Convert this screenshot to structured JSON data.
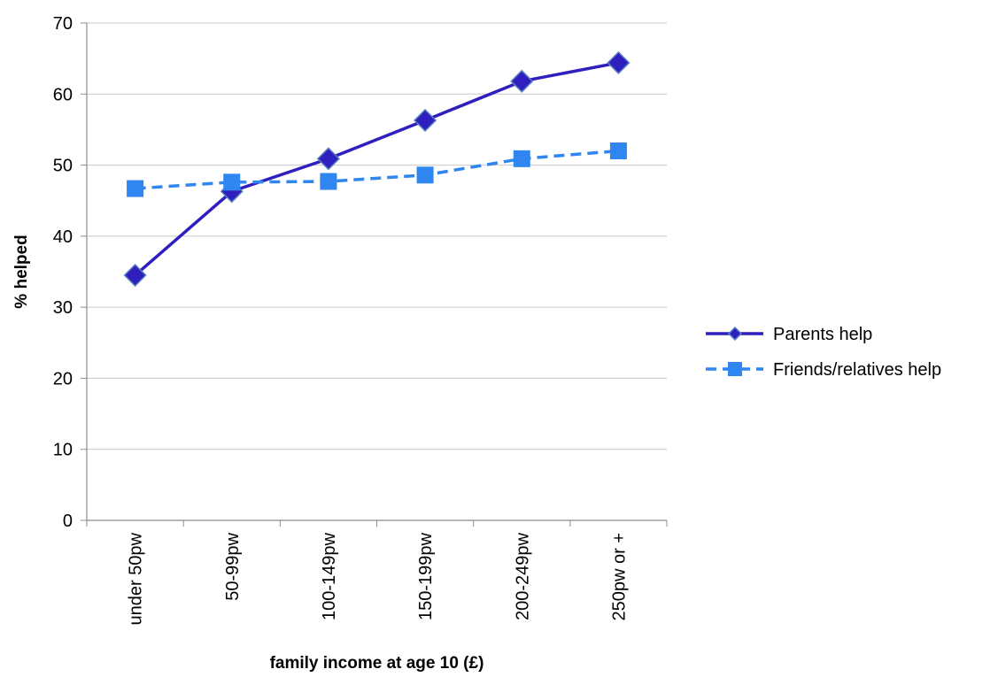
{
  "chart_data": {
    "type": "line",
    "title": "",
    "xlabel": "family income at age 10 (£)",
    "ylabel": "% helped",
    "ylim": [
      0,
      70
    ],
    "yticks": [
      0,
      10,
      20,
      30,
      40,
      50,
      60,
      70
    ],
    "grid": true,
    "legend_position": "right",
    "categories": [
      "under 50pw",
      "50-99pw",
      "100-149pw",
      "150-199pw",
      "200-249pw",
      "250pw or +"
    ],
    "series": [
      {
        "name": "Parents help",
        "values": [
          34.5,
          46.3,
          50.9,
          56.3,
          61.8,
          64.4
        ],
        "color": "#2f1fbe",
        "marker": "diamond",
        "line_style": "solid"
      },
      {
        "name": "Friends/relatives help",
        "values": [
          46.7,
          47.6,
          47.7,
          48.6,
          50.9,
          52.0
        ],
        "color": "#2f86f0",
        "marker": "square",
        "line_style": "dashed"
      }
    ]
  }
}
